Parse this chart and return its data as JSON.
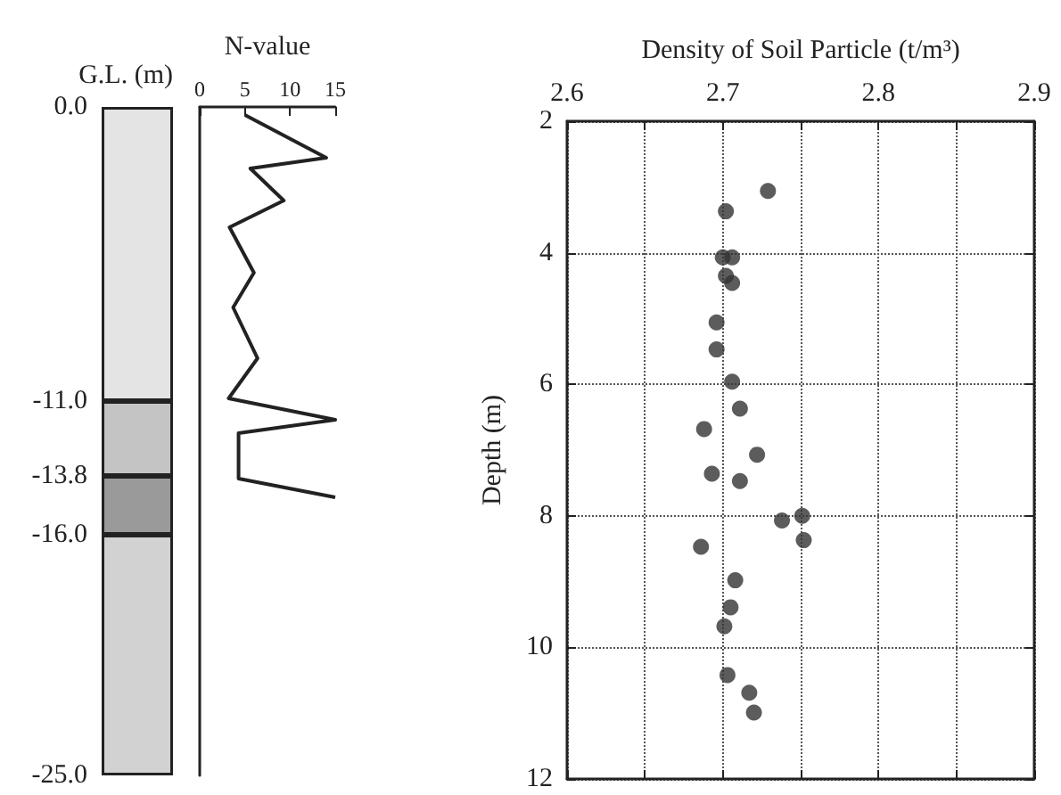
{
  "chart_data": [
    {
      "type": "bar",
      "stacked": true,
      "ylabel": "G.L. (m)",
      "categories": [
        null
      ],
      "ylim": [
        -25,
        0
      ],
      "yticks": [
        {
          "value": 0,
          "label": "0.0"
        },
        {
          "value": -11,
          "label": "-11.0"
        },
        {
          "value": -13.8,
          "label": "-13.8"
        },
        {
          "value": -16,
          "label": "-16.0"
        },
        {
          "value": -25,
          "label": "-25.0"
        }
      ],
      "tick_labels": "y",
      "series": [
        {
          "color": "#e4e4e4",
          "values": [
            -11
          ]
        },
        {
          "color": "#c4c4c4",
          "values": [
            -2.8
          ]
        },
        {
          "color": "#9a9a9a",
          "values": [
            -2.2
          ]
        },
        {
          "color": "#d2d2d2",
          "values": [
            -9
          ]
        }
      ]
    },
    {
      "type": "line",
      "xlabel": "N-value",
      "x": [
        5,
        14,
        5.6,
        9.3,
        3.3,
        6,
        3.7,
        6.4,
        3.2,
        15,
        4.3,
        4.3,
        15
      ],
      "values": [
        -0.3,
        -1.9,
        -2.3,
        -3.5,
        -4.5,
        -6.2,
        -7.5,
        -9.4,
        -10.9,
        -11.7,
        -12.2,
        -13.9,
        -14.6
      ],
      "xlim": [
        0,
        15
      ],
      "xticks": [
        0,
        5,
        10,
        15
      ],
      "ylim": [
        -25,
        0
      ],
      "tick_labels": "x",
      "marker": "none",
      "color": "#222222"
    },
    {
      "type": "scatter",
      "xlabel": "Density of Soil Particle (t/m³)",
      "ylabel": "Depth (m)",
      "x": [
        2.729,
        2.702,
        2.7,
        2.706,
        2.702,
        2.706,
        2.696,
        2.696,
        2.706,
        2.711,
        2.688,
        2.722,
        2.693,
        2.711,
        2.738,
        2.751,
        2.752,
        2.686,
        2.708,
        2.705,
        2.701,
        2.703,
        2.717,
        2.72
      ],
      "values": [
        3.06,
        3.37,
        4.07,
        4.07,
        4.35,
        4.46,
        5.06,
        5.47,
        5.96,
        6.37,
        6.68,
        7.07,
        7.36,
        7.47,
        8.07,
        8.0,
        8.37,
        8.47,
        8.98,
        9.39,
        9.68,
        10.42,
        10.69,
        10.99
      ],
      "xlim": [
        2.6,
        2.9
      ],
      "xticks": [
        2.6,
        {
          "value": 2.65,
          "label": null
        },
        2.7,
        {
          "value": 2.75,
          "label": null
        },
        2.8,
        {
          "value": 2.85,
          "label": null
        },
        2.9
      ],
      "ylim": [
        12,
        2
      ],
      "yticks": [
        2,
        4,
        6,
        8,
        10,
        12
      ],
      "grid": true,
      "marker": "circle",
      "color": "#333333"
    }
  ]
}
